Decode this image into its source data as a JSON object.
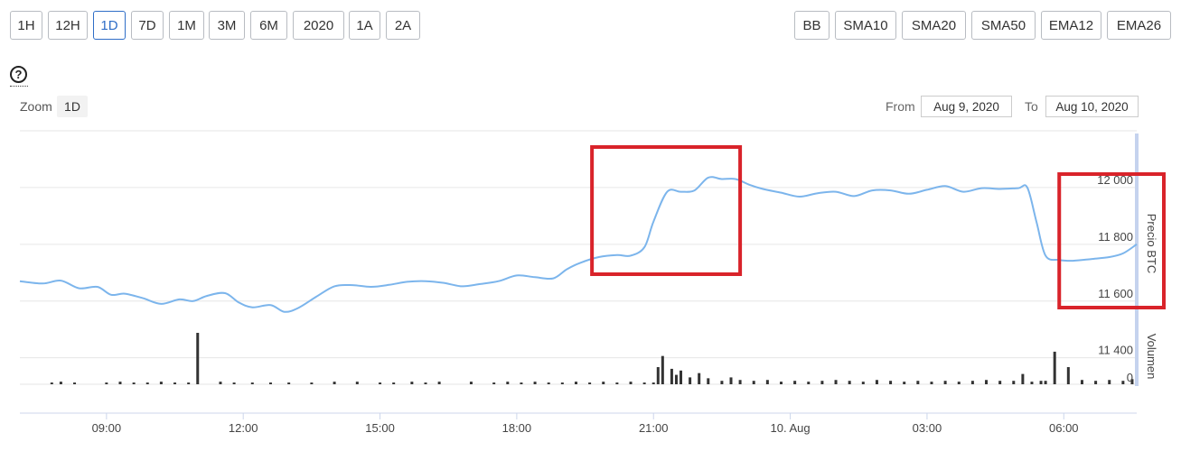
{
  "toolbar": {
    "periods": [
      "1H",
      "12H",
      "1D",
      "7D",
      "1M",
      "3M",
      "6M",
      "2020",
      "1A",
      "2A"
    ],
    "active_period": "1D",
    "indicators": [
      "BB",
      "SMA10",
      "SMA20",
      "SMA50",
      "EMA12",
      "EMA26"
    ]
  },
  "help": {
    "icon": "question-circle-icon",
    "glyph": "?"
  },
  "zoom": {
    "label": "Zoom",
    "value": "1D"
  },
  "range": {
    "from_label": "From",
    "from_value": "Aug 9, 2020",
    "to_label": "To",
    "to_value": "Aug 10, 2020"
  },
  "colors": {
    "price_line": "#7cb5ec",
    "volume_bar": "#333333",
    "highlight_box": "#d9232a",
    "active_button": "#2f6ec7"
  },
  "chart_data": {
    "type": "line",
    "x_tick_labels": [
      "09:00",
      "12:00",
      "15:00",
      "18:00",
      "21:00",
      "10. Aug",
      "03:00",
      "06:00"
    ],
    "x_ticks_hours": [
      9,
      12,
      15,
      18,
      21,
      24,
      27,
      30
    ],
    "xlim_hours": [
      7.1,
      31.6
    ],
    "ylabel": "Precio BTC",
    "y_tick_labels": [
      "12 000",
      "11 800",
      "11 600",
      "11 400"
    ],
    "y_ticks": [
      12000,
      11800,
      11600,
      11400
    ],
    "ylim": [
      11310,
      12200
    ],
    "volume_label": "Volumen",
    "volume_tick_labels": [
      "0"
    ],
    "grid": true,
    "series": [
      {
        "x": [
          7.1,
          7.6,
          8.0,
          8.4,
          8.8,
          9.1,
          9.4,
          9.8,
          10.2,
          10.6,
          10.9,
          11.2,
          11.6,
          11.9,
          12.2,
          12.6,
          12.9,
          13.2,
          13.6,
          14.0,
          14.4,
          14.8,
          15.2,
          15.6,
          16.0,
          16.4,
          16.8,
          17.2,
          17.6,
          18.0,
          18.4,
          18.8,
          19.1,
          19.4,
          19.8,
          20.2,
          20.5,
          20.8,
          21.0,
          21.3,
          21.6,
          21.9,
          22.2,
          22.5,
          22.8,
          23.1,
          23.4,
          23.8,
          24.2,
          24.6,
          25.0,
          25.4,
          25.8,
          26.2,
          26.6,
          27.0,
          27.4,
          27.8,
          28.2,
          28.6,
          29.0,
          29.2,
          29.4,
          29.6,
          29.9,
          30.2,
          30.6,
          31.0,
          31.3,
          31.6
        ],
        "y": [
          11670,
          11662,
          11672,
          11645,
          11650,
          11622,
          11626,
          11610,
          11590,
          11606,
          11600,
          11618,
          11628,
          11595,
          11578,
          11586,
          11562,
          11575,
          11615,
          11652,
          11656,
          11650,
          11657,
          11668,
          11670,
          11664,
          11652,
          11660,
          11670,
          11690,
          11684,
          11680,
          11712,
          11735,
          11755,
          11762,
          11760,
          11790,
          11880,
          11985,
          11985,
          11990,
          12035,
          12030,
          12030,
          12010,
          11995,
          11982,
          11968,
          11980,
          11985,
          11970,
          11990,
          11990,
          11978,
          11992,
          12005,
          11985,
          11998,
          11995,
          11998,
          12000,
          11880,
          11760,
          11745,
          11742,
          11748,
          11755,
          11768,
          11800
        ]
      }
    ],
    "volume": {
      "x": [
        7.8,
        8.0,
        8.3,
        9.0,
        9.3,
        9.6,
        9.9,
        10.2,
        10.5,
        10.8,
        11.0,
        11.5,
        11.8,
        12.2,
        12.6,
        13.0,
        13.5,
        14.0,
        14.5,
        15.0,
        15.3,
        15.7,
        16.0,
        16.3,
        17.0,
        17.5,
        17.8,
        18.1,
        18.4,
        18.7,
        19.0,
        19.3,
        19.6,
        19.9,
        20.2,
        20.5,
        20.8,
        21.0,
        21.1,
        21.2,
        21.4,
        21.5,
        21.6,
        21.8,
        22.0,
        22.2,
        22.5,
        22.7,
        22.9,
        23.2,
        23.5,
        23.8,
        24.1,
        24.4,
        24.7,
        25.0,
        25.3,
        25.6,
        25.9,
        26.2,
        26.5,
        26.8,
        27.1,
        27.4,
        27.7,
        28.0,
        28.3,
        28.6,
        28.9,
        29.1,
        29.3,
        29.5,
        29.6,
        29.8,
        30.1,
        30.4,
        30.7,
        31.0,
        31.3,
        31.5
      ],
      "y": [
        2,
        3,
        2,
        2,
        3,
        2,
        2,
        3,
        2,
        2,
        60,
        3,
        2,
        2,
        2,
        2,
        2,
        3,
        3,
        2,
        2,
        3,
        2,
        3,
        3,
        2,
        3,
        2,
        3,
        2,
        2,
        3,
        2,
        3,
        2,
        3,
        2,
        2,
        20,
        33,
        18,
        11,
        16,
        8,
        13,
        7,
        4,
        8,
        5,
        4,
        5,
        3,
        4,
        3,
        4,
        5,
        4,
        3,
        5,
        4,
        3,
        4,
        3,
        4,
        3,
        4,
        5,
        4,
        4,
        12,
        3,
        4,
        4,
        38,
        20,
        5,
        4,
        5,
        4,
        6
      ]
    },
    "highlight_boxes": [
      {
        "x": [
          19.65,
          22.9
        ]
      },
      {
        "x": [
          29.9,
          32.2
        ]
      }
    ]
  }
}
